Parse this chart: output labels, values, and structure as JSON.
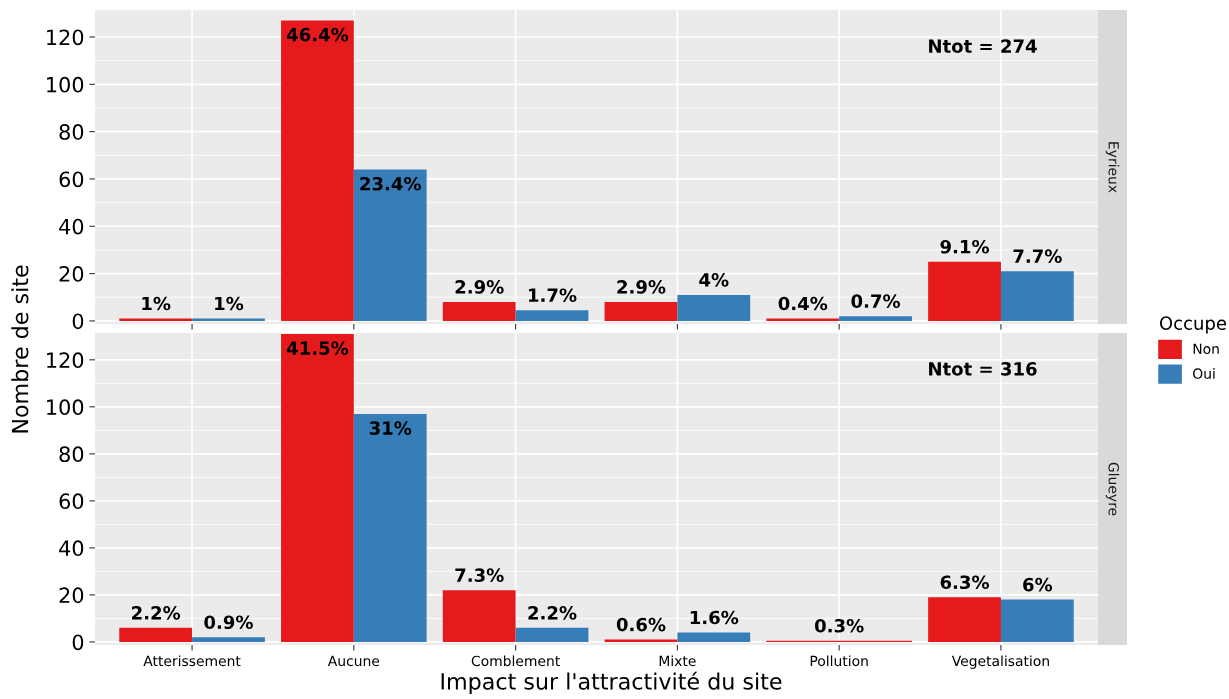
{
  "chart_data": [
    {
      "type": "bar",
      "subtitle": "Eyrieux",
      "ylabel": "Nombre de site",
      "legend_title": "Occupe",
      "legend": "right",
      "categories": [
        "Atterissement",
        "Aucune",
        "Comblement",
        "Mixte",
        "Pollution",
        "Vegetalisation"
      ],
      "ylim": [
        -1.3,
        131.4
      ],
      "yticks": [
        0,
        20,
        40,
        60,
        80,
        100,
        120
      ],
      "grid": true,
      "tick_labels": "y",
      "annotations": [
        "Ntot = 274",
        {
          "text": "1%",
          "x": "Atterissement",
          "y": 1
        },
        {
          "text": "46.4%",
          "x": "Aucune",
          "y": 127
        },
        {
          "text": "2.9%",
          "x": "Comblement",
          "y": 8
        },
        {
          "text": "2.9%",
          "x": "Mixte",
          "y": 8
        },
        {
          "text": "0.4%",
          "x": "Pollution",
          "y": 1
        },
        {
          "text": "9.1%",
          "x": "Vegetalisation",
          "y": 25
        },
        {
          "text": "1%",
          "x": "Atterissement",
          "y": 1
        },
        {
          "text": "23.4%",
          "x": "Aucune",
          "y": 64
        },
        {
          "text": "1.7%",
          "x": "Comblement",
          "y": 4.5
        },
        {
          "text": "4%",
          "x": "Mixte",
          "y": 11
        },
        {
          "text": "0.7%",
          "x": "Pollution",
          "y": 2
        },
        {
          "text": "7.7%",
          "x": "Vegetalisation",
          "y": 21
        }
      ],
      "series": [
        {
          "name": "Non",
          "color": "#e41a1c",
          "values": [
            1,
            127,
            8,
            8,
            1,
            25
          ]
        },
        {
          "name": "Oui",
          "color": "#377eb8",
          "values": [
            1,
            64,
            4.5,
            11,
            2,
            21
          ]
        }
      ]
    },
    {
      "type": "bar",
      "subtitle": "Glueyre",
      "xlabel": "Impact sur l'attractivité du site",
      "categories": [
        "Atterissement",
        "Aucune",
        "Comblement",
        "Mixte",
        "Pollution",
        "Vegetalisation"
      ],
      "ylim": [
        -1.3,
        131.4
      ],
      "yticks": [
        0,
        20,
        40,
        60,
        80,
        100,
        120
      ],
      "grid": true,
      "annotations": [
        "Ntot = 316",
        {
          "text": "2.2%",
          "x": "Atterissement",
          "y": 6
        },
        {
          "text": "41.5%",
          "x": "Aucune",
          "y": 131
        },
        {
          "text": "7.3%",
          "x": "Comblement",
          "y": 22
        },
        {
          "text": "0.6%",
          "x": "Mixte",
          "y": 1
        },
        {
          "text": "0.3%",
          "x": "Pollution",
          "y": 0.5
        },
        {
          "text": "6.3%",
          "x": "Vegetalisation",
          "y": 19
        },
        {
          "text": "0.9%",
          "x": "Atterissement",
          "y": 2
        },
        {
          "text": "31%",
          "x": "Aucune",
          "y": 97
        },
        {
          "text": "2.2%",
          "x": "Comblement",
          "y": 6
        },
        {
          "text": "1.6%",
          "x": "Mixte",
          "y": 4
        },
        {
          "text": "6%",
          "x": "Vegetalisation",
          "y": 18
        }
      ],
      "series": [
        {
          "name": "Non",
          "color": "#e41a1c",
          "values": [
            6,
            131,
            22,
            1,
            0.5,
            19
          ]
        },
        {
          "name": "Oui",
          "color": "#377eb8",
          "values": [
            2,
            97,
            6,
            4,
            null,
            18
          ]
        }
      ]
    }
  ]
}
